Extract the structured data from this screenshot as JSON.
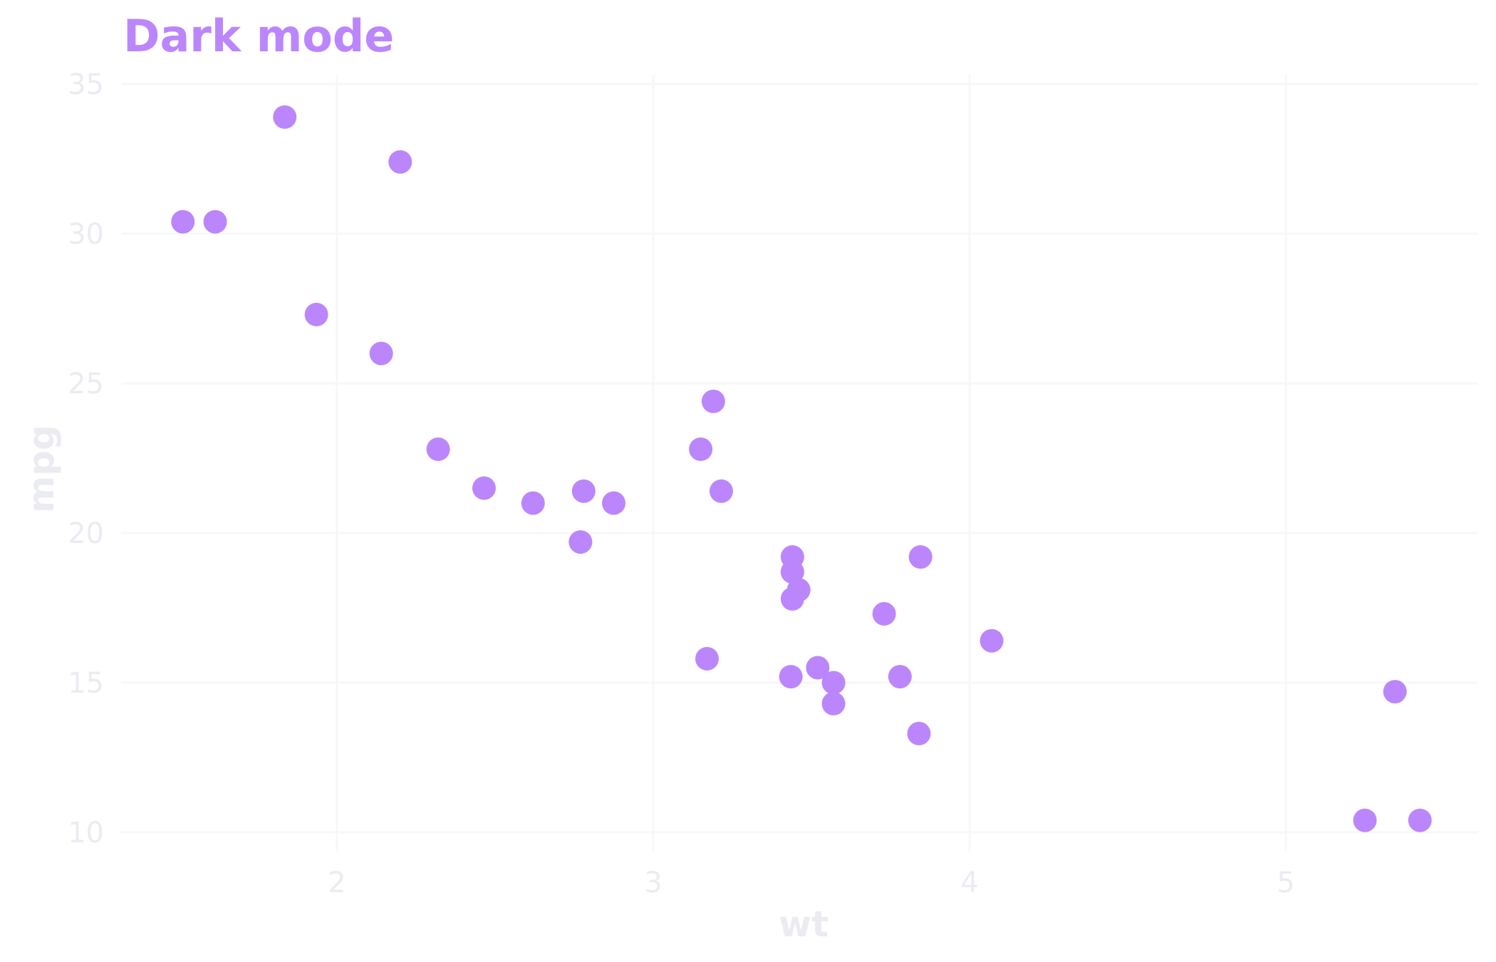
{
  "chart_data": {
    "type": "scatter",
    "title": "Dark mode",
    "xlabel": "wt",
    "ylabel": "mpg",
    "xlim": [
      1.32,
      5.62
    ],
    "ylim": [
      9.2,
      35.0
    ],
    "x_ticks": [
      2,
      3,
      4,
      5
    ],
    "y_ticks": [
      10,
      15,
      20,
      25,
      30,
      35
    ],
    "grid": true,
    "legend": null,
    "colors": {
      "title": "#BB86FC",
      "point": "#BB86FC",
      "text": "#EBEBF2",
      "grid": "#F7F7FA",
      "background": "#FFFFFF"
    },
    "points": [
      {
        "x": 2.62,
        "y": 21.0
      },
      {
        "x": 2.875,
        "y": 21.0
      },
      {
        "x": 2.32,
        "y": 22.8
      },
      {
        "x": 3.215,
        "y": 21.4
      },
      {
        "x": 3.44,
        "y": 18.7
      },
      {
        "x": 3.46,
        "y": 18.1
      },
      {
        "x": 3.57,
        "y": 14.3
      },
      {
        "x": 3.19,
        "y": 24.4
      },
      {
        "x": 3.15,
        "y": 22.8
      },
      {
        "x": 3.44,
        "y": 19.2
      },
      {
        "x": 3.44,
        "y": 17.8
      },
      {
        "x": 4.07,
        "y": 16.4
      },
      {
        "x": 3.73,
        "y": 17.3
      },
      {
        "x": 3.78,
        "y": 15.2
      },
      {
        "x": 5.25,
        "y": 10.4
      },
      {
        "x": 5.424,
        "y": 10.4
      },
      {
        "x": 5.345,
        "y": 14.7
      },
      {
        "x": 2.2,
        "y": 32.4
      },
      {
        "x": 1.615,
        "y": 30.4
      },
      {
        "x": 1.835,
        "y": 33.9
      },
      {
        "x": 2.465,
        "y": 21.5
      },
      {
        "x": 3.52,
        "y": 15.5
      },
      {
        "x": 3.435,
        "y": 15.2
      },
      {
        "x": 3.84,
        "y": 13.3
      },
      {
        "x": 3.845,
        "y": 19.2
      },
      {
        "x": 1.935,
        "y": 27.3
      },
      {
        "x": 2.14,
        "y": 26.0
      },
      {
        "x": 1.513,
        "y": 30.4
      },
      {
        "x": 3.17,
        "y": 15.8
      },
      {
        "x": 2.77,
        "y": 19.7
      },
      {
        "x": 3.57,
        "y": 15.0
      },
      {
        "x": 2.78,
        "y": 21.4
      }
    ]
  }
}
